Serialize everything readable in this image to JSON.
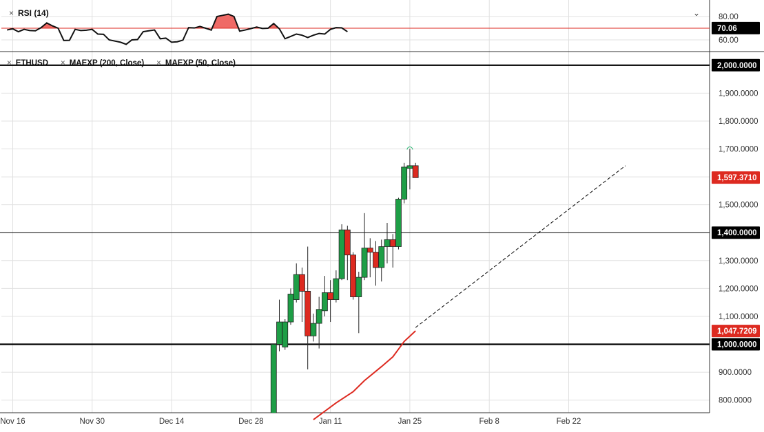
{
  "rsi": {
    "title": "RSI (14)",
    "close_icon": "×",
    "collapse_icon": "⌄",
    "overbought_level": 70,
    "ticks": [
      "80.00",
      "60.00"
    ],
    "current_label": "70.06",
    "values": [
      {
        "x": "2020-11-15",
        "y": 68.5
      },
      {
        "x": "2020-11-16",
        "y": 69.5
      },
      {
        "x": "2020-11-17",
        "y": 67.0
      },
      {
        "x": "2020-11-18",
        "y": 69.0
      },
      {
        "x": "2020-11-19",
        "y": 68.0
      },
      {
        "x": "2020-11-20",
        "y": 67.8
      },
      {
        "x": "2020-11-21",
        "y": 70.5
      },
      {
        "x": "2020-11-22",
        "y": 74.5
      },
      {
        "x": "2020-11-23",
        "y": 72.0
      },
      {
        "x": "2020-11-24",
        "y": 70.0
      },
      {
        "x": "2020-11-25",
        "y": 59.5
      },
      {
        "x": "2020-11-26",
        "y": 59.6
      },
      {
        "x": "2020-11-27",
        "y": 69.0
      },
      {
        "x": "2020-11-28",
        "y": 68.0
      },
      {
        "x": "2020-11-29",
        "y": 68.3
      },
      {
        "x": "2020-11-30",
        "y": 69.0
      },
      {
        "x": "2020-12-01",
        "y": 65.0
      },
      {
        "x": "2020-12-02",
        "y": 64.8
      },
      {
        "x": "2020-12-03",
        "y": 60.0
      },
      {
        "x": "2020-12-04",
        "y": 59.0
      },
      {
        "x": "2020-12-05",
        "y": 58.0
      },
      {
        "x": "2020-12-06",
        "y": 56.2
      },
      {
        "x": "2020-12-07",
        "y": 60.0
      },
      {
        "x": "2020-12-08",
        "y": 60.3
      },
      {
        "x": "2020-12-09",
        "y": 67.0
      },
      {
        "x": "2020-12-10",
        "y": 67.8
      },
      {
        "x": "2020-12-11",
        "y": 68.5
      },
      {
        "x": "2020-12-12",
        "y": 61.0
      },
      {
        "x": "2020-12-13",
        "y": 61.5
      },
      {
        "x": "2020-12-14",
        "y": 58.0
      },
      {
        "x": "2020-12-15",
        "y": 58.4
      },
      {
        "x": "2020-12-16",
        "y": 59.8
      },
      {
        "x": "2020-12-17",
        "y": 70.5
      },
      {
        "x": "2020-12-18",
        "y": 70.2
      },
      {
        "x": "2020-12-19",
        "y": 71.5
      },
      {
        "x": "2020-12-20",
        "y": 70.0
      },
      {
        "x": "2020-12-21",
        "y": 68.4
      },
      {
        "x": "2020-12-22",
        "y": 80.0
      },
      {
        "x": "2020-12-23",
        "y": 81.0
      },
      {
        "x": "2020-12-24",
        "y": 82.0
      },
      {
        "x": "2020-12-25",
        "y": 80.0
      },
      {
        "x": "2020-12-26",
        "y": 67.5
      },
      {
        "x": "2020-12-27",
        "y": 68.5
      },
      {
        "x": "2020-12-28",
        "y": 69.7
      },
      {
        "x": "2020-12-29",
        "y": 71.0
      },
      {
        "x": "2020-12-30",
        "y": 69.8
      },
      {
        "x": "2020-12-31",
        "y": 70.0
      },
      {
        "x": "2021-01-01",
        "y": 74.0
      },
      {
        "x": "2021-01-02",
        "y": 69.5
      },
      {
        "x": "2021-01-03",
        "y": 61.0
      },
      {
        "x": "2021-01-04",
        "y": 63.0
      },
      {
        "x": "2021-01-05",
        "y": 65.0
      },
      {
        "x": "2021-01-06",
        "y": 64.0
      },
      {
        "x": "2021-01-07",
        "y": 62.0
      },
      {
        "x": "2021-01-08",
        "y": 64.0
      },
      {
        "x": "2021-01-09",
        "y": 65.5
      },
      {
        "x": "2021-01-10",
        "y": 65.0
      },
      {
        "x": "2021-01-11",
        "y": 69.0
      },
      {
        "x": "2021-01-12",
        "y": 70.5
      },
      {
        "x": "2021-01-13",
        "y": 70.3
      },
      {
        "x": "2021-01-14",
        "y": 67.0
      }
    ]
  },
  "price": {
    "symbol": "ETHUSD",
    "indicators": [
      "MAEXP (200, Close)",
      "MAEXP (50, Close)"
    ],
    "close_icon": "×",
    "ticks": [
      "2,000.0000",
      "1,900.0000",
      "1,800.0000",
      "1,700.0000",
      "1,500.0000",
      "1,300.0000",
      "1,200.0000",
      "1,100.0000",
      "900.0000",
      "800.0000"
    ],
    "last_price_label": "1,597.3710",
    "ma_label": "1,047.7209",
    "level_labels": [
      "2,000.0000",
      "1,400.0000",
      "1,000.0000"
    ]
  },
  "x_axis_labels": [
    "Nov 16",
    "Nov 30",
    "Dec 14",
    "Dec 28",
    "Jan 11",
    "Jan 25",
    "Feb 8",
    "Feb 22"
  ],
  "colors": {
    "up": "#1e9e46",
    "down": "#dd2a20",
    "ma": "#dd2a20",
    "rsi_line": "#111111",
    "rsi_fill": "#ef6a66",
    "grid": "#e0e0e0",
    "peak_marker": "#2bb673"
  },
  "chart_data": {
    "type": "candlestick",
    "symbol": "ETHUSD",
    "ylim": [
      770,
      2030
    ],
    "xlim": [
      "2020-11-14",
      "2021-03-04"
    ],
    "grid": true,
    "horizontal_lines": [
      2000,
      1400,
      1000
    ],
    "candles": [
      {
        "date": "2021-01-01",
        "open": 730,
        "high": 1000,
        "low": 715,
        "close": 1000
      },
      {
        "date": "2021-01-02",
        "open": 1000,
        "high": 1160,
        "low": 975,
        "close": 1080
      },
      {
        "date": "2021-01-03",
        "open": 990,
        "high": 1090,
        "low": 980,
        "close": 1080
      },
      {
        "date": "2021-01-04",
        "open": 1080,
        "high": 1200,
        "low": 1070,
        "close": 1180
      },
      {
        "date": "2021-01-05",
        "open": 1160,
        "high": 1290,
        "low": 1150,
        "close": 1250
      },
      {
        "date": "2021-01-06",
        "open": 1250,
        "high": 1275,
        "low": 1080,
        "close": 1190
      },
      {
        "date": "2021-01-07",
        "open": 1190,
        "high": 1350,
        "low": 910,
        "close": 1030
      },
      {
        "date": "2021-01-08",
        "open": 1030,
        "high": 1110,
        "low": 1010,
        "close": 1075
      },
      {
        "date": "2021-01-09",
        "open": 1075,
        "high": 1170,
        "low": 985,
        "close": 1125
      },
      {
        "date": "2021-01-10",
        "open": 1120,
        "high": 1245,
        "low": 1100,
        "close": 1185
      },
      {
        "date": "2021-01-11",
        "open": 1185,
        "high": 1230,
        "low": 1080,
        "close": 1160
      },
      {
        "date": "2021-01-12",
        "open": 1160,
        "high": 1265,
        "low": 1150,
        "close": 1235
      },
      {
        "date": "2021-01-13",
        "open": 1235,
        "high": 1430,
        "low": 1230,
        "close": 1410
      },
      {
        "date": "2021-01-14",
        "open": 1410,
        "high": 1425,
        "low": 1230,
        "close": 1320
      },
      {
        "date": "2021-01-15",
        "open": 1320,
        "high": 1330,
        "low": 1160,
        "close": 1170
      },
      {
        "date": "2021-01-16",
        "open": 1170,
        "high": 1260,
        "low": 1040,
        "close": 1240
      },
      {
        "date": "2021-01-17",
        "open": 1240,
        "high": 1470,
        "low": 1230,
        "close": 1345
      },
      {
        "date": "2021-01-18",
        "open": 1345,
        "high": 1380,
        "low": 1240,
        "close": 1330
      },
      {
        "date": "2021-01-19",
        "open": 1330,
        "high": 1370,
        "low": 1210,
        "close": 1275
      },
      {
        "date": "2021-01-20",
        "open": 1275,
        "high": 1375,
        "low": 1225,
        "close": 1350
      },
      {
        "date": "2021-01-21",
        "open": 1350,
        "high": 1435,
        "low": 1290,
        "close": 1375
      },
      {
        "date": "2021-01-22",
        "open": 1375,
        "high": 1395,
        "low": 1275,
        "close": 1350
      },
      {
        "date": "2021-01-23",
        "open": 1350,
        "high": 1525,
        "low": 1340,
        "close": 1520
      },
      {
        "date": "2021-01-24",
        "open": 1520,
        "high": 1650,
        "low": 1505,
        "close": 1635
      },
      {
        "date": "2021-01-25",
        "open": 1630,
        "high": 1700,
        "low": 1555,
        "close": 1640
      },
      {
        "date": "2021-01-26",
        "open": 1640,
        "high": 1650,
        "low": 1597,
        "close": 1597
      }
    ],
    "ma_series": {
      "name": "MAEXP (50, Close)",
      "points": [
        {
          "date": "2021-01-08",
          "y": 730
        },
        {
          "date": "2021-01-12",
          "y": 790
        },
        {
          "date": "2021-01-15",
          "y": 830
        },
        {
          "date": "2021-01-17",
          "y": 870
        },
        {
          "date": "2021-01-20",
          "y": 920
        },
        {
          "date": "2021-01-22",
          "y": 955
        },
        {
          "date": "2021-01-24",
          "y": 1010
        },
        {
          "date": "2021-01-26",
          "y": 1048
        }
      ]
    },
    "trendline": [
      {
        "date": "2021-01-26",
        "y": 1060
      },
      {
        "date": "2021-03-04",
        "y": 1640
      }
    ]
  }
}
